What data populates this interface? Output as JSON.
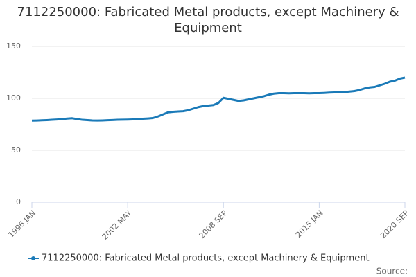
{
  "chart_data": {
    "type": "line",
    "title": "7112250000: Fabricated Metal products, except Machinery & Equipment",
    "source": "Source:",
    "categories": [
      "1996 JAN",
      null,
      null,
      null,
      null,
      null,
      null,
      null,
      null,
      null,
      null,
      null,
      null,
      null,
      null,
      null,
      null,
      null,
      null,
      "2002 MAY",
      null,
      null,
      null,
      null,
      null,
      null,
      null,
      null,
      null,
      null,
      null,
      null,
      null,
      null,
      null,
      null,
      null,
      null,
      "2008 SEP",
      null,
      null,
      null,
      null,
      null,
      null,
      null,
      null,
      null,
      null,
      null,
      null,
      null,
      null,
      null,
      null,
      null,
      null,
      "2015 JAN",
      null,
      null,
      null,
      null,
      null,
      null,
      null,
      null,
      null,
      null,
      null,
      null,
      null,
      null,
      null,
      null,
      "2020 SEP"
    ],
    "series": [
      {
        "name": "7112250000: Fabricated Metal products, except Machinery & Equipment",
        "color": "#1a7ab8",
        "values": [
          78.5,
          78.6,
          78.8,
          79,
          79.3,
          79.6,
          80,
          80.5,
          80.8,
          80,
          79.3,
          79,
          78.7,
          78.6,
          78.7,
          78.9,
          79.1,
          79.3,
          79.4,
          79.5,
          79.7,
          80,
          80.3,
          80.6,
          81,
          82.5,
          84.5,
          86.5,
          87,
          87.3,
          87.6,
          88.5,
          90,
          91.5,
          92.5,
          93,
          93.5,
          95.5,
          100.5,
          99.5,
          98.5,
          97.5,
          98,
          99,
          100,
          101,
          102,
          103.5,
          104.5,
          105,
          105,
          104.8,
          105,
          105,
          105,
          104.8,
          105,
          105,
          105.2,
          105.5,
          105.7,
          105.8,
          106,
          106.5,
          107,
          108,
          109.5,
          110.5,
          111,
          112.5,
          114,
          116,
          117,
          119,
          120
        ]
      }
    ],
    "ylim": [
      0,
      150
    ],
    "yticks": [
      0,
      50,
      100,
      150
    ],
    "grid": true
  }
}
